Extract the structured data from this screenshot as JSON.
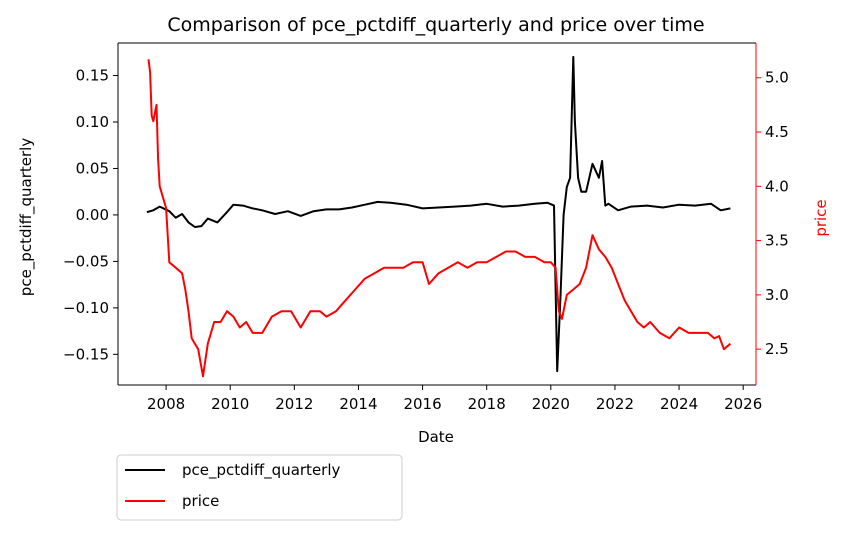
{
  "chart_data": {
    "type": "line",
    "title": "Comparison of pce_pctdiff_quarterly and price over time",
    "xlabel": "Date",
    "ylabel_left": "pce_pctdiff_quarterly",
    "ylabel_right": "price",
    "xlim": [
      2006.5,
      2026.4
    ],
    "ylim_left": [
      -0.183,
      0.185
    ],
    "ylim_right": [
      2.17,
      5.32
    ],
    "x_ticks": [
      "2008",
      "2010",
      "2012",
      "2014",
      "2016",
      "2018",
      "2020",
      "2022",
      "2024",
      "2026"
    ],
    "y_ticks_left": [
      "−0.15",
      "−0.10",
      "−0.05",
      "0.00",
      "0.05",
      "0.10",
      "0.15"
    ],
    "y_ticks_right": [
      "2.5",
      "3.0",
      "3.5",
      "4.0",
      "4.5",
      "5.0"
    ],
    "grid": false,
    "legend_position": "below-left",
    "colors": {
      "pce": "#000000",
      "price": "#ff0000",
      "right_axis": "#ff0000"
    },
    "series": [
      {
        "name": "pce_pctdiff_quarterly",
        "axis": "left",
        "x": [
          2007.4,
          2007.6,
          2007.8,
          2008.1,
          2008.3,
          2008.5,
          2008.7,
          2008.9,
          2009.1,
          2009.3,
          2009.6,
          2009.9,
          2010.1,
          2010.4,
          2010.7,
          2011.0,
          2011.4,
          2011.8,
          2012.2,
          2012.6,
          2013.0,
          2013.4,
          2013.8,
          2014.2,
          2014.6,
          2015.0,
          2015.5,
          2016.0,
          2016.5,
          2017.0,
          2017.5,
          2018.0,
          2018.5,
          2019.0,
          2019.5,
          2019.9,
          2020.1,
          2020.2,
          2020.3,
          2020.4,
          2020.5,
          2020.6,
          2020.7,
          2020.75,
          2020.85,
          2020.95,
          2021.1,
          2021.3,
          2021.5,
          2021.6,
          2021.7,
          2021.8,
          2022.1,
          2022.5,
          2023.0,
          2023.5,
          2024.0,
          2024.5,
          2025.0,
          2025.3,
          2025.6
        ],
        "y": [
          0.003,
          0.005,
          0.009,
          0.004,
          -0.003,
          0.001,
          -0.008,
          -0.013,
          -0.012,
          -0.004,
          -0.008,
          0.003,
          0.011,
          0.01,
          0.007,
          0.005,
          0.001,
          0.004,
          -0.001,
          0.004,
          0.006,
          0.006,
          0.008,
          0.011,
          0.014,
          0.013,
          0.011,
          0.007,
          0.008,
          0.009,
          0.01,
          0.012,
          0.009,
          0.01,
          0.012,
          0.013,
          0.01,
          -0.168,
          -0.09,
          0.0,
          0.03,
          0.04,
          0.17,
          0.1,
          0.04,
          0.025,
          0.025,
          0.055,
          0.04,
          0.058,
          0.01,
          0.012,
          0.005,
          0.009,
          0.01,
          0.008,
          0.011,
          0.01,
          0.012,
          0.005,
          0.007
        ]
      },
      {
        "name": "price",
        "axis": "right",
        "x": [
          2007.45,
          2007.5,
          2007.55,
          2007.6,
          2007.7,
          2007.75,
          2007.8,
          2007.9,
          2008.0,
          2008.05,
          2008.1,
          2008.3,
          2008.5,
          2008.6,
          2008.7,
          2008.8,
          2008.9,
          2009.0,
          2009.15,
          2009.3,
          2009.5,
          2009.7,
          2009.9,
          2010.1,
          2010.3,
          2010.5,
          2010.7,
          2011.0,
          2011.3,
          2011.6,
          2011.9,
          2012.2,
          2012.5,
          2012.8,
          2013.0,
          2013.3,
          2013.6,
          2013.9,
          2014.2,
          2014.5,
          2014.8,
          2015.1,
          2015.4,
          2015.7,
          2016.0,
          2016.2,
          2016.5,
          2016.8,
          2017.1,
          2017.4,
          2017.7,
          2018.0,
          2018.3,
          2018.6,
          2018.9,
          2019.2,
          2019.5,
          2019.8,
          2020.0,
          2020.15,
          2020.25,
          2020.35,
          2020.5,
          2020.7,
          2020.9,
          2021.1,
          2021.3,
          2021.5,
          2021.7,
          2021.9,
          2022.1,
          2022.3,
          2022.5,
          2022.7,
          2022.9,
          2023.1,
          2023.4,
          2023.7,
          2024.0,
          2024.3,
          2024.6,
          2024.9,
          2025.1,
          2025.25,
          2025.4,
          2025.6
        ],
        "y": [
          5.17,
          5.05,
          4.65,
          4.6,
          4.75,
          4.25,
          4.0,
          3.9,
          3.8,
          3.55,
          3.3,
          3.25,
          3.2,
          3.05,
          2.85,
          2.6,
          2.55,
          2.5,
          2.25,
          2.55,
          2.75,
          2.75,
          2.85,
          2.8,
          2.7,
          2.75,
          2.65,
          2.65,
          2.8,
          2.85,
          2.85,
          2.7,
          2.85,
          2.85,
          2.8,
          2.85,
          2.95,
          3.05,
          3.15,
          3.2,
          3.25,
          3.25,
          3.25,
          3.3,
          3.3,
          3.1,
          3.2,
          3.25,
          3.3,
          3.25,
          3.3,
          3.3,
          3.35,
          3.4,
          3.4,
          3.35,
          3.35,
          3.3,
          3.3,
          3.25,
          2.85,
          2.78,
          3.0,
          3.05,
          3.1,
          3.25,
          3.55,
          3.42,
          3.35,
          3.25,
          3.1,
          2.95,
          2.85,
          2.75,
          2.7,
          2.75,
          2.65,
          2.6,
          2.7,
          2.65,
          2.65,
          2.65,
          2.6,
          2.62,
          2.5,
          2.55
        ]
      }
    ]
  }
}
